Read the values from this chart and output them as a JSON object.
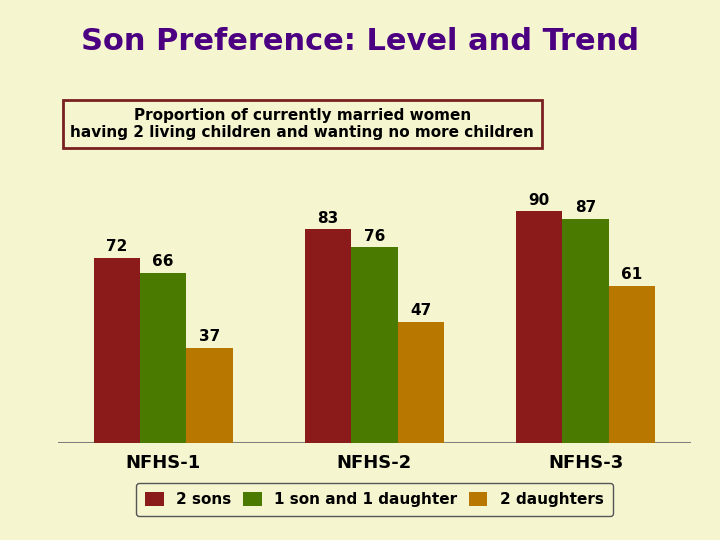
{
  "title": "Son Preference: Level and Trend",
  "subtitle_line1": "Proportion of currently married women",
  "subtitle_line2": "having 2 living children and wanting no more children",
  "categories": [
    "NFHS-1",
    "NFHS-2",
    "NFHS-3"
  ],
  "series": {
    "2 sons": [
      72,
      83,
      90
    ],
    "1 son and 1 daughter": [
      66,
      76,
      87
    ],
    "2 daughters": [
      37,
      47,
      61
    ]
  },
  "bar_colors": {
    "2 sons": "#8B1A1A",
    "1 son and 1 daughter": "#4A7A00",
    "2 daughters": "#B87800"
  },
  "background_color": "#F5F5D0",
  "title_color": "#4B0082",
  "subtitle_box_border_color": "#7A2020",
  "subtitle_box_bg": "#F5F5D0",
  "bar_width": 0.22,
  "ylim": [
    0,
    105
  ],
  "label_fontsize": 11,
  "title_fontsize": 22,
  "subtitle_fontsize": 11,
  "axis_label_fontsize": 13,
  "legend_fontsize": 11,
  "platform_color": "#AAAAAA"
}
